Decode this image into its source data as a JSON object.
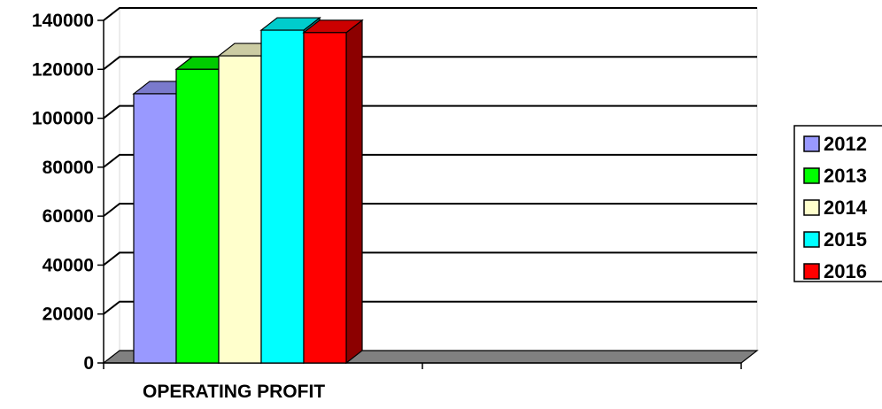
{
  "chart_data": {
    "type": "bar",
    "view": "3d",
    "categories": [
      "OPERATING PROFIT"
    ],
    "series": [
      {
        "name": "2012",
        "values": [
          110000
        ],
        "color": "#9999ff"
      },
      {
        "name": "2013",
        "values": [
          120000
        ],
        "color": "#00ff00"
      },
      {
        "name": "2014",
        "values": [
          125500
        ],
        "color": "#ffffcc"
      },
      {
        "name": "2015",
        "values": [
          136000
        ],
        "color": "#00ffff"
      },
      {
        "name": "2016",
        "values": [
          135000
        ],
        "color": "#ff0000"
      }
    ],
    "yticks": [
      "0",
      "20000",
      "40000",
      "60000",
      "80000",
      "100000",
      "120000",
      "140000"
    ],
    "ylim": [
      0,
      140000
    ],
    "grid": true,
    "legend_position": "right",
    "floor_color": "#808080",
    "gridline_color": "#000000"
  }
}
